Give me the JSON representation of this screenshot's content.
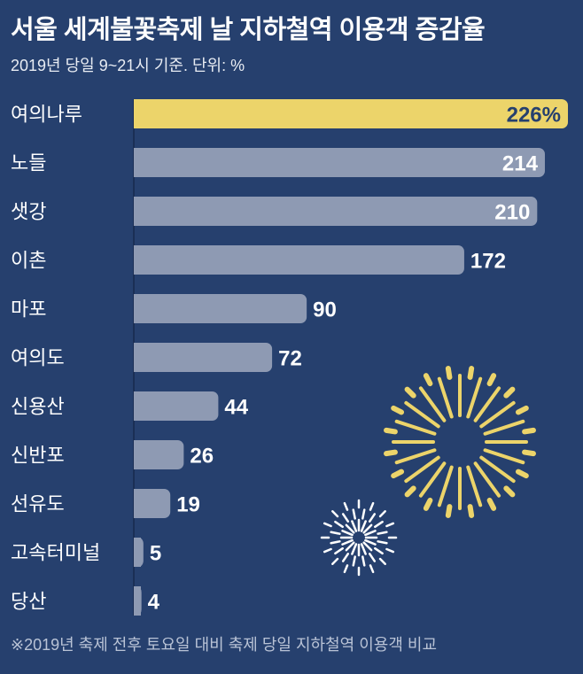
{
  "title": "서울 세계불꽃축제 날 지하철역 이용객 증감율",
  "subtitle": "2019년 당일 9~21시 기준. 단위: %",
  "footnote": "※2019년 축제 전후 토요일 대비 축제 당일 지하철역 이용객 비교",
  "colors": {
    "background": "#26406e",
    "highlight": "#ecd46a",
    "bar": "#8e9ab3",
    "firework_large": "#ecd46a",
    "firework_small": "#ffffff"
  },
  "chart_data": {
    "type": "bar",
    "orientation": "horizontal",
    "title": "서울 세계불꽃축제 날 지하철역 이용객 증감율",
    "subtitle": "2019년 당일 9~21시 기준. 단위: %",
    "categories": [
      "여의나루",
      "노들",
      "샛강",
      "이촌",
      "마포",
      "여의도",
      "신용산",
      "신반포",
      "선유도",
      "고속터미널",
      "당산"
    ],
    "values": [
      226,
      214,
      210,
      172,
      90,
      72,
      44,
      26,
      19,
      5,
      4
    ],
    "value_labels": [
      "226%",
      "214",
      "210",
      "172",
      "90",
      "72",
      "44",
      "26",
      "19",
      "5",
      "4"
    ],
    "highlight_index": 0,
    "xlim": [
      0,
      226
    ],
    "grid": false
  }
}
